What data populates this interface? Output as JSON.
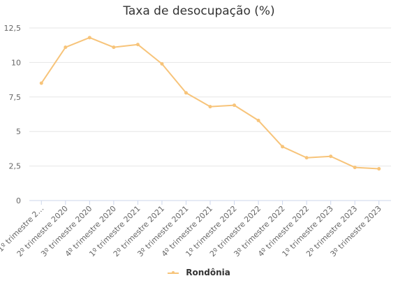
{
  "chart_data": {
    "type": "line",
    "title": "Taxa de desocupação (%)",
    "xlabel": "",
    "ylabel": "",
    "ylim": [
      0,
      12.5
    ],
    "yticks": [
      "0",
      "2,5",
      "5",
      "7,5",
      "10",
      "12,5"
    ],
    "categories": [
      "1º trimestre 2…",
      "2º trimestre 2020",
      "3º trimestre 2020",
      "4º trimestre 2020",
      "1º trimestre 2021",
      "2º trimestre 2021",
      "3º trimestre 2021",
      "4º trimestre 2021",
      "1º trimestre 2022",
      "2º trimestre 2022",
      "3º trimestre 2022",
      "4º trimestre 2022",
      "1º trimestre 2023",
      "2º trimestre 2023",
      "3º trimestre 2023"
    ],
    "series": [
      {
        "name": "Rondônia",
        "color": "#f7c47a",
        "values": [
          8.5,
          11.1,
          11.8,
          11.1,
          11.3,
          9.9,
          7.8,
          6.8,
          6.9,
          5.8,
          3.9,
          3.1,
          3.2,
          2.4,
          2.3
        ]
      }
    ],
    "grid": true,
    "legend_position": "bottom-center"
  }
}
